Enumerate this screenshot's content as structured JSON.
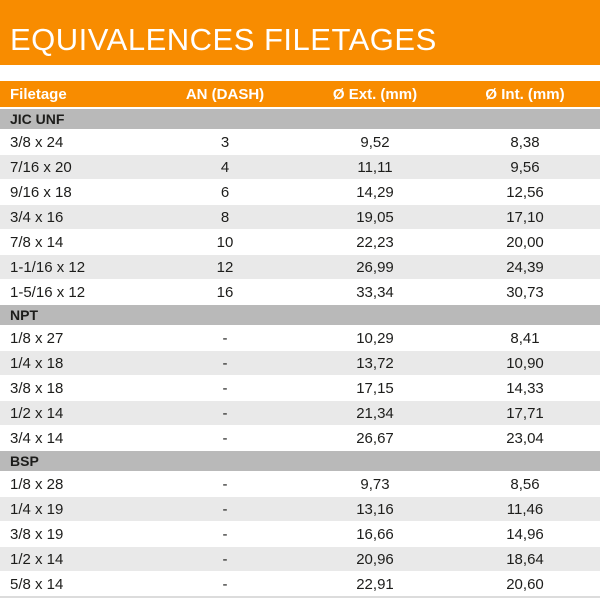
{
  "title": "EQUIVALENCES FILETAGES",
  "colors": {
    "accent_orange": "#f88c00",
    "section_gray": "#b9b9b9",
    "zebra_gray": "#e9e9e9",
    "header_text": "#ffffff",
    "body_text": "#1d1d1b"
  },
  "table": {
    "columns": [
      "Filetage",
      "AN (DASH)",
      "Ø Ext. (mm)",
      "Ø Int. (mm)"
    ],
    "sections": [
      {
        "name": "JIC UNF",
        "rows": [
          [
            "3/8 x 24",
            "3",
            "9,52",
            "8,38"
          ],
          [
            "7/16 x 20",
            "4",
            "11,11",
            "9,56"
          ],
          [
            "9/16 x 18",
            "6",
            "14,29",
            "12,56"
          ],
          [
            "3/4 x 16",
            "8",
            "19,05",
            "17,10"
          ],
          [
            "7/8 x 14",
            "10",
            "22,23",
            "20,00"
          ],
          [
            "1-1/16 x 12",
            "12",
            "26,99",
            "24,39"
          ],
          [
            "1-5/16 x 12",
            "16",
            "33,34",
            "30,73"
          ]
        ]
      },
      {
        "name": "NPT",
        "rows": [
          [
            "1/8 x 27",
            "-",
            "10,29",
            "8,41"
          ],
          [
            "1/4 x 18",
            "-",
            "13,72",
            "10,90"
          ],
          [
            "3/8 x 18",
            "-",
            "17,15",
            "14,33"
          ],
          [
            "1/2 x 14",
            "-",
            "21,34",
            "17,71"
          ],
          [
            "3/4 x 14",
            "-",
            "26,67",
            "23,04"
          ]
        ]
      },
      {
        "name": "BSP",
        "rows": [
          [
            "1/8 x 28",
            "-",
            "9,73",
            "8,56"
          ],
          [
            "1/4 x 19",
            "-",
            "13,16",
            "11,46"
          ],
          [
            "3/8 x 19",
            "-",
            "16,66",
            "14,96"
          ],
          [
            "1/2 x 14",
            "-",
            "20,96",
            "18,64"
          ],
          [
            "5/8 x 14",
            "-",
            "22,91",
            "20,60"
          ]
        ]
      }
    ]
  }
}
